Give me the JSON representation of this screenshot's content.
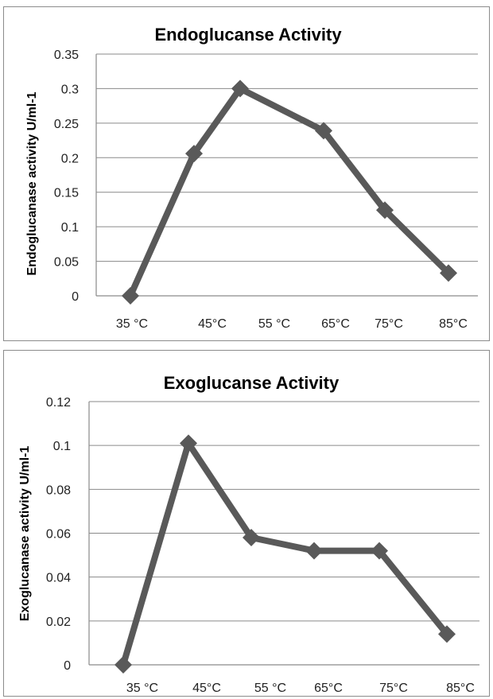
{
  "chart_data": [
    {
      "type": "line",
      "title": "Endoglucanse Activity",
      "ylabel": "Endoglucanase  activity  U/ml-1",
      "xlabel": "",
      "categories": [
        "35 °C",
        "45°C",
        "55 °C",
        "65°C",
        "75°C",
        "85°C"
      ],
      "series": [
        {
          "values": [
            0.0,
            0.206,
            0.3,
            0.239,
            0.124,
            0.033
          ],
          "color": "#595959"
        }
      ],
      "ylim": [
        0,
        0.35
      ],
      "yticks": [
        "0",
        "0.05",
        "0.1",
        "0.15",
        "0.2",
        "0.25",
        "0.3",
        "0.35"
      ],
      "grid": true,
      "marker": "diamond"
    },
    {
      "type": "line",
      "title": "Exoglucanse Activity",
      "ylabel": "Exoglucanase  activity  U/ml-1",
      "xlabel": "",
      "categories": [
        "35 °C",
        "45°C",
        "55 °C",
        "65°C",
        "75°C",
        "85°C"
      ],
      "series": [
        {
          "values": [
            0.0,
            0.101,
            0.058,
            0.052,
            0.052,
            0.014
          ],
          "color": "#595959"
        }
      ],
      "ylim": [
        0,
        0.12
      ],
      "yticks": [
        "0",
        "0.02",
        "0.04",
        "0.06",
        "0.08",
        "0.1",
        "0.12"
      ],
      "grid": true,
      "marker": "diamond"
    }
  ]
}
